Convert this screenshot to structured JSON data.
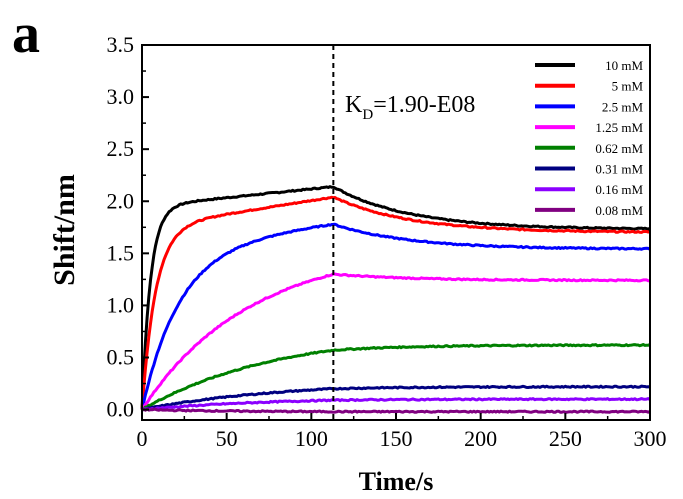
{
  "panel_label": "a",
  "chart_data": {
    "type": "line",
    "xlabel": "Time/s",
    "ylabel": "Shift/nm",
    "xlim": [
      0,
      300
    ],
    "ylim": [
      -0.1,
      3.5
    ],
    "xticks": [
      "0",
      "50",
      "100",
      "150",
      "200",
      "250",
      "300"
    ],
    "yticks": [
      "0.0",
      "0.5",
      "1.0",
      "1.5",
      "2.0",
      "2.5",
      "3.0",
      "3.5"
    ],
    "grid": false,
    "legend_position": "top-right",
    "dissociation_start": 113,
    "annotation": {
      "k": "K",
      "sub": "D",
      "rest": "=1.90-E08"
    },
    "series": [
      {
        "name": "10 mM",
        "color": "#000000",
        "plateau": 1.95,
        "tau": 5,
        "end": 2.14,
        "dissoc_end": 1.73
      },
      {
        "name": "5 mM",
        "color": "#ff0000",
        "plateau": 1.75,
        "tau": 8,
        "end": 2.04,
        "dissoc_end": 1.7
      },
      {
        "name": "2.5 mM",
        "color": "#0000ff",
        "plateau": 1.55,
        "tau": 22,
        "end": 1.78,
        "dissoc_end": 1.54
      },
      {
        "name": "1.25 mM",
        "color": "#ff00ff",
        "plateau": 1.45,
        "tau": 60,
        "end": 1.3,
        "dissoc_end": 1.24
      },
      {
        "name": "0.62 mM",
        "color": "#008000",
        "plateau": 0.9,
        "tau": 90,
        "end": 0.57,
        "dissoc_end": 0.62
      },
      {
        "name": "0.31 mM",
        "color": "#000080",
        "plateau": 0.3,
        "tau": 90,
        "end": 0.2,
        "dissoc_end": 0.22
      },
      {
        "name": "0.16 mM",
        "color": "#8b00ff",
        "plateau": 0.14,
        "tau": 90,
        "end": 0.09,
        "dissoc_end": 0.1
      },
      {
        "name": "0.08 mM",
        "color": "#800080",
        "plateau": -0.02,
        "tau": 50,
        "end": -0.02,
        "dissoc_end": -0.02
      }
    ]
  }
}
